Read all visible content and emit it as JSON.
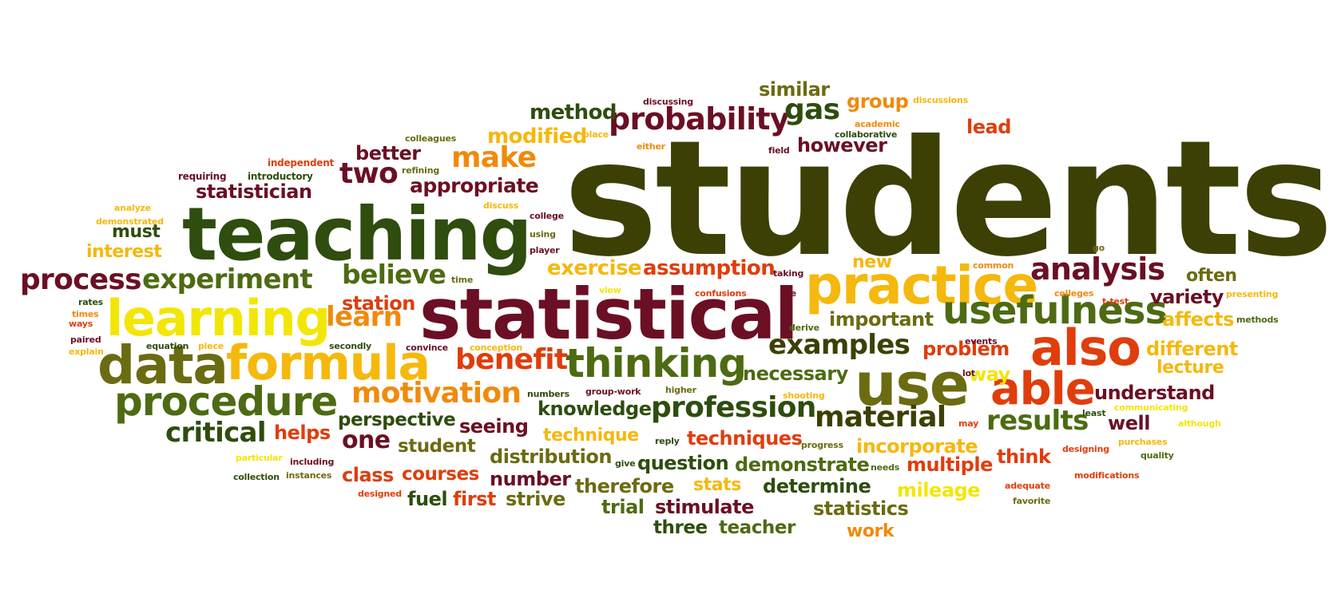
{
  "palette": {
    "olive_dark": "#3d4005",
    "forest": "#2e4d0e",
    "green": "#4d6b12",
    "olive": "#6b6b12",
    "maroon": "#6b0f24",
    "red_orange": "#e03d0c",
    "orange": "#f08a0c",
    "amber": "#f5b80c",
    "yellow": "#f2e607"
  },
  "words": [
    {
      "text": "students",
      "color": "#3d4005"
    },
    {
      "text": "teaching",
      "color": "#2e4d0e"
    },
    {
      "text": "statistical",
      "color": "#6b0f24"
    },
    {
      "text": "learning",
      "color": "#f2e607"
    },
    {
      "text": "data",
      "color": "#6b6b12"
    },
    {
      "text": "formula",
      "color": "#f5b80c"
    },
    {
      "text": "practice",
      "color": "#f5b80c"
    },
    {
      "text": "use",
      "color": "#6b6b12"
    },
    {
      "text": "also",
      "color": "#e03d0c"
    },
    {
      "text": "usefulness",
      "color": "#4d6b12"
    },
    {
      "text": "procedure",
      "color": "#4d6b12"
    },
    {
      "text": "thinking",
      "color": "#4d6b12"
    },
    {
      "text": "able",
      "color": "#e03d0c"
    },
    {
      "text": "process",
      "color": "#6b0f24"
    },
    {
      "text": "experiment",
      "color": "#4d6b12"
    },
    {
      "text": "analysis",
      "color": "#6b0f24"
    },
    {
      "text": "probability",
      "color": "#6b0f24"
    },
    {
      "text": "motivation",
      "color": "#f08a0c"
    },
    {
      "text": "profession",
      "color": "#2e4d0e"
    },
    {
      "text": "material",
      "color": "#3d4005"
    },
    {
      "text": "examples",
      "color": "#3d4005"
    },
    {
      "text": "benefit",
      "color": "#e03d0c"
    },
    {
      "text": "results",
      "color": "#4d6b12"
    },
    {
      "text": "critical",
      "color": "#2e4d0e"
    },
    {
      "text": "believe",
      "color": "#4d6b12"
    },
    {
      "text": "learn",
      "color": "#f08a0c"
    },
    {
      "text": "make",
      "color": "#f08a0c"
    },
    {
      "text": "two",
      "color": "#6b0f24"
    },
    {
      "text": "gas",
      "color": "#2e4d0e"
    },
    {
      "text": "one",
      "color": "#6b0f24"
    },
    {
      "text": "assumption",
      "color": "#e03d0c"
    },
    {
      "text": "exercise",
      "color": "#f5b80c"
    },
    {
      "text": "method",
      "color": "#2e4d0e"
    },
    {
      "text": "modified",
      "color": "#f5b80c"
    },
    {
      "text": "similar",
      "color": "#6b6b12"
    },
    {
      "text": "group",
      "color": "#f08a0c"
    },
    {
      "text": "appropriate",
      "color": "#6b0f24"
    },
    {
      "text": "better",
      "color": "#6b0f24"
    },
    {
      "text": "statistician",
      "color": "#6b0f24"
    },
    {
      "text": "must",
      "color": "#2e4d0e"
    },
    {
      "text": "interest",
      "color": "#f5b80c"
    },
    {
      "text": "however",
      "color": "#6b0f24"
    },
    {
      "text": "lead",
      "color": "#e03d0c"
    },
    {
      "text": "new",
      "color": "#f5b80c"
    },
    {
      "text": "often",
      "color": "#6b6b12"
    },
    {
      "text": "variety",
      "color": "#6b0f24"
    },
    {
      "text": "important",
      "color": "#6b6b12"
    },
    {
      "text": "affects",
      "color": "#f5b80c"
    },
    {
      "text": "different",
      "color": "#f5b80c"
    },
    {
      "text": "lecture",
      "color": "#f5b80c"
    },
    {
      "text": "problem",
      "color": "#e03d0c"
    },
    {
      "text": "way",
      "color": "#f2e607"
    },
    {
      "text": "necessary",
      "color": "#4d6b12"
    },
    {
      "text": "understand",
      "color": "#6b0f24"
    },
    {
      "text": "well",
      "color": "#6b0f24"
    },
    {
      "text": "station",
      "color": "#e03d0c"
    },
    {
      "text": "knowledge",
      "color": "#2e4d0e"
    },
    {
      "text": "perspective",
      "color": "#2e4d0e"
    },
    {
      "text": "seeing",
      "color": "#6b0f24"
    },
    {
      "text": "technique",
      "color": "#f5b80c"
    },
    {
      "text": "techniques",
      "color": "#e03d0c"
    },
    {
      "text": "incorporate",
      "color": "#f5b80c"
    },
    {
      "text": "think",
      "color": "#e03d0c"
    },
    {
      "text": "helps",
      "color": "#e03d0c"
    },
    {
      "text": "student",
      "color": "#6b6b12"
    },
    {
      "text": "distribution",
      "color": "#6b6b12"
    },
    {
      "text": "question",
      "color": "#2e4d0e"
    },
    {
      "text": "demonstrate",
      "color": "#4d6b12"
    },
    {
      "text": "multiple",
      "color": "#e03d0c"
    },
    {
      "text": "class",
      "color": "#e03d0c"
    },
    {
      "text": "courses",
      "color": "#e03d0c"
    },
    {
      "text": "number",
      "color": "#6b0f24"
    },
    {
      "text": "therefore",
      "color": "#6b6b12"
    },
    {
      "text": "stats",
      "color": "#f5b80c"
    },
    {
      "text": "determine",
      "color": "#2e4d0e"
    },
    {
      "text": "mileage",
      "color": "#f2e607"
    },
    {
      "text": "fuel",
      "color": "#2e4d0e"
    },
    {
      "text": "first",
      "color": "#e03d0c"
    },
    {
      "text": "strive",
      "color": "#6b6b12"
    },
    {
      "text": "trial",
      "color": "#4d6b12"
    },
    {
      "text": "stimulate",
      "color": "#6b0f24"
    },
    {
      "text": "statistics",
      "color": "#6b6b12"
    },
    {
      "text": "three",
      "color": "#2e4d0e"
    },
    {
      "text": "teacher",
      "color": "#4d6b12"
    },
    {
      "text": "work",
      "color": "#f08a0c"
    },
    {
      "text": "discussing",
      "color": "#6b0f24"
    },
    {
      "text": "discussions",
      "color": "#f5b80c"
    },
    {
      "text": "academic",
      "color": "#f08a0c"
    },
    {
      "text": "collaborative",
      "color": "#2e4d0e"
    },
    {
      "text": "colleagues",
      "color": "#6b6b12"
    },
    {
      "text": "place",
      "color": "#f5b80c"
    },
    {
      "text": "either",
      "color": "#f08a0c"
    },
    {
      "text": "field",
      "color": "#6b0f24"
    },
    {
      "text": "independent",
      "color": "#e03d0c"
    },
    {
      "text": "requiring",
      "color": "#6b0f24"
    },
    {
      "text": "introductory",
      "color": "#2e4d0e"
    },
    {
      "text": "refining",
      "color": "#6b6b12"
    },
    {
      "text": "analyze",
      "color": "#f5b80c"
    },
    {
      "text": "demonstrated",
      "color": "#f5b80c"
    },
    {
      "text": "discuss",
      "color": "#f5b80c"
    },
    {
      "text": "college",
      "color": "#6b0f24"
    },
    {
      "text": "using",
      "color": "#6b6b12"
    },
    {
      "text": "player",
      "color": "#6b0f24"
    },
    {
      "text": "go",
      "color": "#6b6b12"
    },
    {
      "text": "common",
      "color": "#f08a0c"
    },
    {
      "text": "time",
      "color": "#6b6b12"
    },
    {
      "text": "taking",
      "color": "#6b0f24"
    },
    {
      "text": "view",
      "color": "#f2e607"
    },
    {
      "text": "confusions",
      "color": "#e03d0c"
    },
    {
      "text": "life",
      "color": "#6b0f24"
    },
    {
      "text": "colleges",
      "color": "#f08a0c"
    },
    {
      "text": "t-test",
      "color": "#e03d0c"
    },
    {
      "text": "presenting",
      "color": "#f5b80c"
    },
    {
      "text": "methods",
      "color": "#4d6b12"
    },
    {
      "text": "rates",
      "color": "#2e4d0e"
    },
    {
      "text": "times",
      "color": "#f08a0c"
    },
    {
      "text": "ways",
      "color": "#e03d0c"
    },
    {
      "text": "paired",
      "color": "#6b0f24"
    },
    {
      "text": "explain",
      "color": "#f5b80c"
    },
    {
      "text": "equation",
      "color": "#2e4d0e"
    },
    {
      "text": "piece",
      "color": "#f5b80c"
    },
    {
      "text": "secondly",
      "color": "#2e4d0e"
    },
    {
      "text": "convince",
      "color": "#6b0f24"
    },
    {
      "text": "conception",
      "color": "#f5b80c"
    },
    {
      "text": "derive",
      "color": "#4d6b12"
    },
    {
      "text": "events",
      "color": "#6b0f24"
    },
    {
      "text": "lot",
      "color": "#6b0f24"
    },
    {
      "text": "numbers",
      "color": "#2e4d0e"
    },
    {
      "text": "group-work",
      "color": "#6b0f24"
    },
    {
      "text": "higher",
      "color": "#6b6b12"
    },
    {
      "text": "shooting",
      "color": "#f5b80c"
    },
    {
      "text": "least",
      "color": "#2e4d0e"
    },
    {
      "text": "communicating",
      "color": "#f2e607"
    },
    {
      "text": "may",
      "color": "#e03d0c"
    },
    {
      "text": "although",
      "color": "#f2e607"
    },
    {
      "text": "reply",
      "color": "#2e4d0e"
    },
    {
      "text": "progress",
      "color": "#6b6b12"
    },
    {
      "text": "purchases",
      "color": "#f5b80c"
    },
    {
      "text": "particular",
      "color": "#f2e607"
    },
    {
      "text": "including",
      "color": "#6b0f24"
    },
    {
      "text": "give",
      "color": "#2e4d0e"
    },
    {
      "text": "needs",
      "color": "#4d6b12"
    },
    {
      "text": "designing",
      "color": "#e03d0c"
    },
    {
      "text": "quality",
      "color": "#4d6b12"
    },
    {
      "text": "collection",
      "color": "#2e4d0e"
    },
    {
      "text": "instances",
      "color": "#6b6b12"
    },
    {
      "text": "modifications",
      "color": "#e03d0c"
    },
    {
      "text": "adequate",
      "color": "#e03d0c"
    },
    {
      "text": "designed",
      "color": "#e03d0c"
    },
    {
      "text": "favorite",
      "color": "#6b6b12"
    }
  ]
}
